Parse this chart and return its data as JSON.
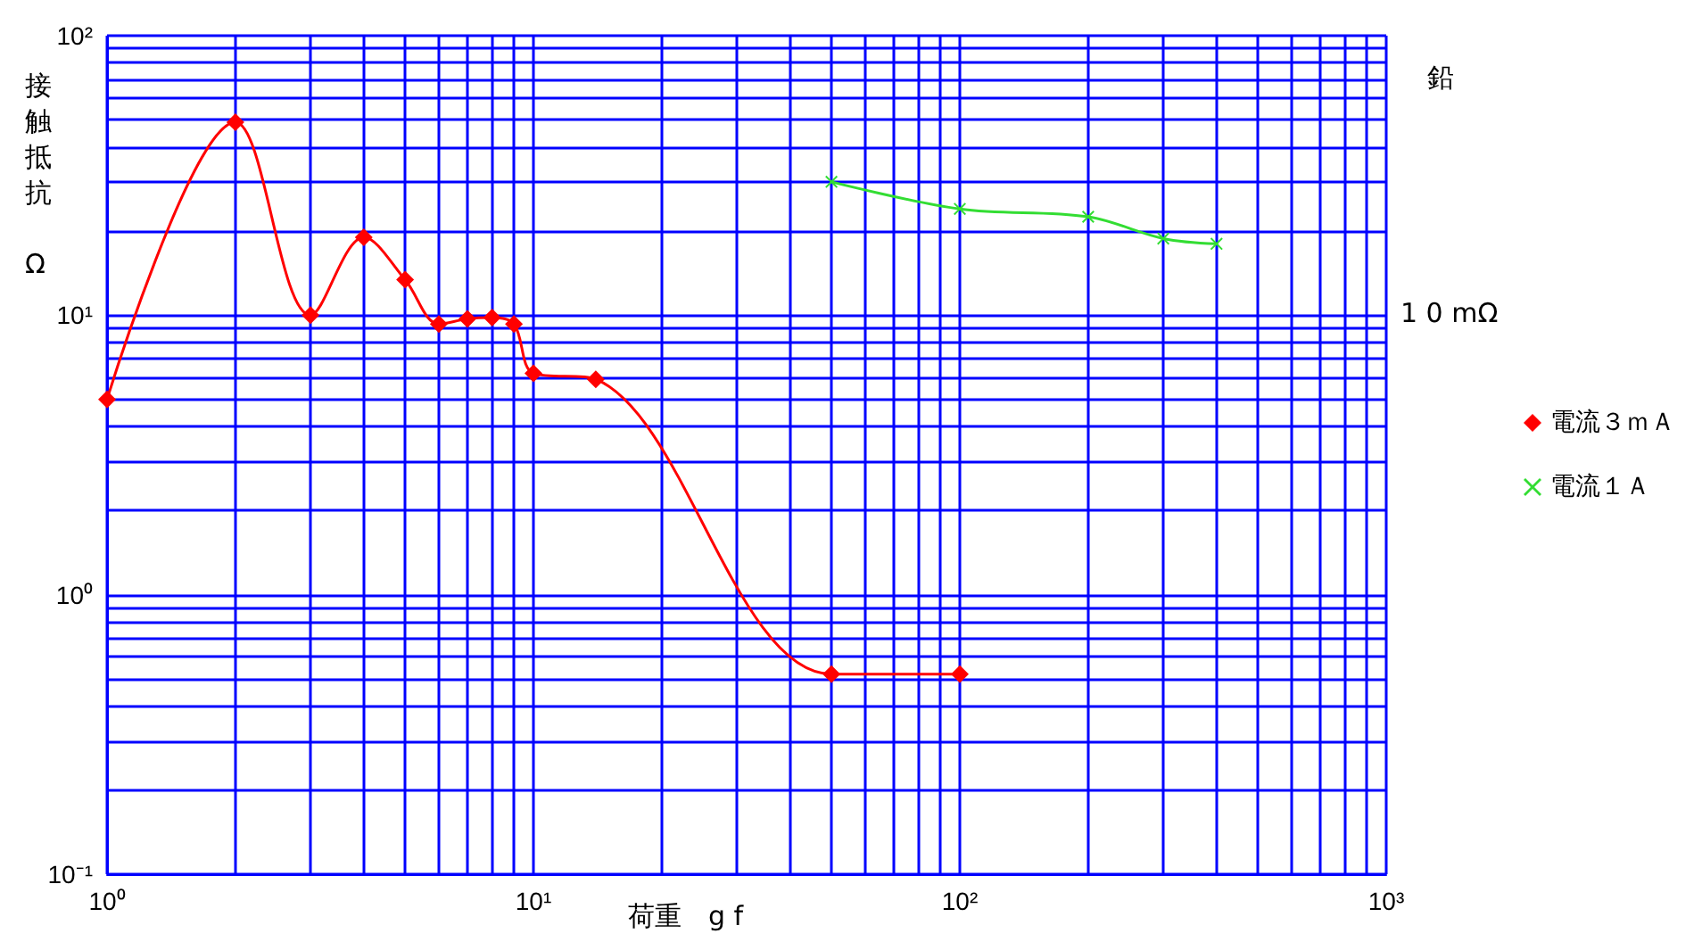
{
  "chart_data": {
    "type": "line",
    "xlabel": "荷重　g f",
    "ylabel": "接触抵抗 Ω",
    "annotations": [
      "鉛",
      "1 0 mΩ"
    ],
    "log": "xy",
    "grid": true,
    "legend": "right",
    "xlim": [
      1,
      1000
    ],
    "xticks": [
      {
        "value": 1,
        "label": "10⁰"
      },
      {
        "value": 2,
        "label": null
      },
      {
        "value": 3,
        "label": null
      },
      {
        "value": 4,
        "label": null
      },
      {
        "value": 5,
        "label": null
      },
      {
        "value": 6,
        "label": null
      },
      {
        "value": 7,
        "label": null
      },
      {
        "value": 8,
        "label": null
      },
      {
        "value": 9,
        "label": null
      },
      {
        "value": 10,
        "label": "10¹"
      },
      {
        "value": 20,
        "label": null
      },
      {
        "value": 30,
        "label": null
      },
      {
        "value": 40,
        "label": null
      },
      {
        "value": 50,
        "label": null
      },
      {
        "value": 60,
        "label": null
      },
      {
        "value": 70,
        "label": null
      },
      {
        "value": 80,
        "label": null
      },
      {
        "value": 90,
        "label": null
      },
      {
        "value": 100,
        "label": "10²"
      },
      {
        "value": 200,
        "label": null
      },
      {
        "value": 300,
        "label": null
      },
      {
        "value": 400,
        "label": null
      },
      {
        "value": 500,
        "label": null
      },
      {
        "value": 600,
        "label": null
      },
      {
        "value": 700,
        "label": null
      },
      {
        "value": 800,
        "label": null
      },
      {
        "value": 900,
        "label": null
      },
      {
        "value": 1000,
        "label": "10³"
      }
    ],
    "ylim": [
      0.1,
      100
    ],
    "yticks": [
      {
        "value": 0.1,
        "label": "10⁻¹"
      },
      {
        "value": 0.2,
        "label": null
      },
      {
        "value": 0.3,
        "label": null
      },
      {
        "value": 0.4,
        "label": null
      },
      {
        "value": 0.5,
        "label": null
      },
      {
        "value": 0.6,
        "label": null
      },
      {
        "value": 0.7,
        "label": null
      },
      {
        "value": 0.8,
        "label": null
      },
      {
        "value": 0.9,
        "label": null
      },
      {
        "value": 1,
        "label": "10⁰"
      },
      {
        "value": 2,
        "label": null
      },
      {
        "value": 3,
        "label": null
      },
      {
        "value": 4,
        "label": null
      },
      {
        "value": 5,
        "label": null
      },
      {
        "value": 6,
        "label": null
      },
      {
        "value": 7,
        "label": null
      },
      {
        "value": 8,
        "label": null
      },
      {
        "value": 9,
        "label": null
      },
      {
        "value": 10,
        "label": "10¹"
      },
      {
        "value": 20,
        "label": null
      },
      {
        "value": 30,
        "label": null
      },
      {
        "value": 40,
        "label": null
      },
      {
        "value": 50,
        "label": null
      },
      {
        "value": 60,
        "label": null
      },
      {
        "value": 70,
        "label": null
      },
      {
        "value": 80,
        "label": null
      },
      {
        "value": 90,
        "label": null
      },
      {
        "value": 100,
        "label": "10²"
      }
    ],
    "series": [
      {
        "name": "電流３ｍＡ",
        "color": "#ff0000",
        "marker": "diamond",
        "x": [
          1,
          2,
          3,
          4,
          5,
          6,
          7,
          8,
          9,
          10,
          14,
          50,
          100
        ],
        "values": [
          5,
          49,
          10,
          19,
          13.4,
          9.3,
          9.7,
          9.8,
          9.3,
          6.2,
          5.9,
          0.52,
          0.52
        ]
      },
      {
        "name": "電流１Ａ",
        "color": "#33dd33",
        "marker": "cross",
        "x": [
          50,
          100,
          200,
          300,
          400
        ],
        "values": [
          30,
          24,
          22.5,
          18.8,
          18
        ]
      }
    ]
  }
}
